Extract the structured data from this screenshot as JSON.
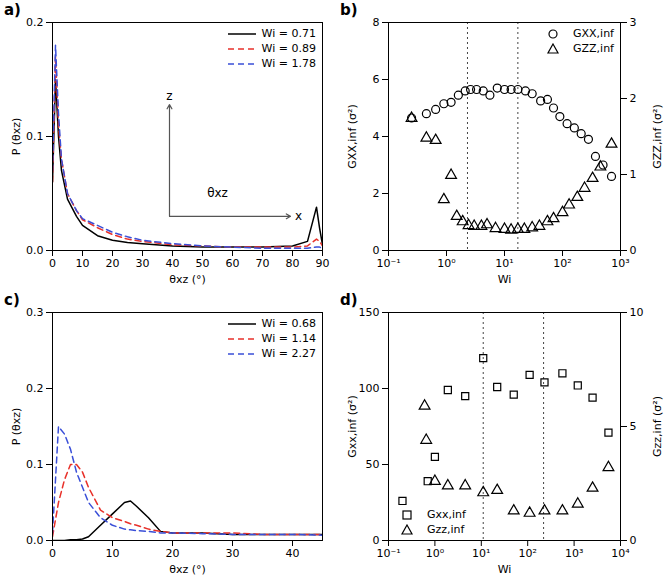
{
  "chart_data": [
    {
      "type": "line",
      "title": "a)",
      "x_label": "θxz (°)",
      "y_label": "P (θxz)",
      "x": [
        0,
        1,
        2,
        3,
        5,
        8,
        10,
        15,
        20,
        25,
        30,
        40,
        50,
        60,
        70,
        80,
        85,
        88,
        89,
        90
      ],
      "series": [
        {
          "name": "Wi = 0.71",
          "color": "#000000",
          "line_style": "solid",
          "values": [
            0.06,
            0.15,
            0.1,
            0.07,
            0.045,
            0.03,
            0.022,
            0.013,
            0.009,
            0.007,
            0.006,
            0.004,
            0.003,
            0.003,
            0.003,
            0.004,
            0.008,
            0.038,
            0.02,
            0.005
          ]
        },
        {
          "name": "Wi = 0.89",
          "color": "#e8312a",
          "line_style": "dashed",
          "values": [
            0.06,
            0.17,
            0.11,
            0.08,
            0.05,
            0.035,
            0.027,
            0.02,
            0.014,
            0.01,
            0.008,
            0.005,
            0.004,
            0.003,
            0.003,
            0.003,
            0.004,
            0.01,
            0.008,
            0.004
          ]
        },
        {
          "name": "Wi = 1.78",
          "color": "#3a4fd8",
          "line_style": "dashed",
          "values": [
            0.07,
            0.18,
            0.12,
            0.08,
            0.05,
            0.035,
            0.028,
            0.022,
            0.016,
            0.012,
            0.009,
            0.006,
            0.004,
            0.003,
            0.002,
            0.002,
            0.002,
            0.003,
            0.003,
            0.002
          ]
        }
      ],
      "annotations": [
        {
          "text": "z",
          "x": 39,
          "y": 0.135
        },
        {
          "text": "x",
          "x": 82,
          "y": 0.03
        },
        {
          "text": "θxz",
          "x": 55,
          "y": 0.05
        }
      ],
      "xlim": [
        0,
        90
      ],
      "xticks": [
        0,
        10,
        20,
        30,
        40,
        50,
        60,
        70,
        80,
        90
      ],
      "ylim": [
        0,
        0.2
      ],
      "yticks": [
        {
          "value": 0,
          "label": "0.0"
        },
        {
          "value": 0.1,
          "label": "0.1"
        },
        {
          "value": 0.2,
          "label": "0.2"
        }
      ],
      "legend": "upper right"
    },
    {
      "type": "scatter",
      "title": "b)",
      "x_label": "Wi",
      "y_label": "GXX,inf (σ²)",
      "y2_label": "GZZ,inf (σ²)",
      "log": "x",
      "series": [
        {
          "name": "GXX,inf",
          "color": "#000000",
          "marker": "circle",
          "x": [
            0.25,
            0.45,
            0.65,
            0.9,
            1.2,
            1.6,
            2.1,
            2.6,
            3.3,
            4.3,
            5.6,
            7.5,
            10,
            13,
            17,
            23,
            30,
            42,
            55,
            70,
            90,
            120,
            160,
            210,
            280,
            370,
            500,
            700
          ],
          "values": [
            4.65,
            4.8,
            4.95,
            5.15,
            5.2,
            5.45,
            5.6,
            5.65,
            5.65,
            5.6,
            5.45,
            5.7,
            5.65,
            5.65,
            5.65,
            5.6,
            5.5,
            5.25,
            5.3,
            5.0,
            4.7,
            4.45,
            4.3,
            4.1,
            3.9,
            3.3,
            3.0,
            2.6
          ]
        },
        {
          "name": "GZZ,inf",
          "color": "#000000",
          "marker": "triangle",
          "axis": "y2",
          "x": [
            0.25,
            0.45,
            0.65,
            0.9,
            1.2,
            1.5,
            1.9,
            2.4,
            3,
            4,
            5,
            7,
            10,
            13,
            17,
            22,
            30,
            40,
            55,
            70,
            100,
            130,
            180,
            240,
            330,
            450,
            700
          ],
          "values": [
            1.74,
            1.48,
            1.45,
            0.67,
            0.99,
            0.45,
            0.38,
            0.33,
            0.32,
            0.32,
            0.34,
            0.29,
            0.28,
            0.27,
            0.28,
            0.28,
            0.3,
            0.32,
            0.38,
            0.42,
            0.5,
            0.6,
            0.7,
            0.82,
            0.95,
            1.1,
            1.4
          ]
        }
      ],
      "vlines": [
        2.3,
        17
      ],
      "xlim": [
        0.1,
        1000
      ],
      "xticks": [
        {
          "value": 0.1,
          "label": "10⁻¹"
        },
        {
          "value": 1,
          "label": "10⁰"
        },
        {
          "value": 10,
          "label": "10¹"
        },
        {
          "value": 100,
          "label": "10²"
        },
        {
          "value": 1000,
          "label": "10³"
        }
      ],
      "ylim": [
        0,
        8
      ],
      "yticks": [
        0,
        2,
        4,
        6,
        8
      ],
      "y2lim": [
        0,
        3
      ],
      "y2ticks": [
        0,
        1,
        2,
        3
      ],
      "legend": "upper right"
    },
    {
      "type": "line",
      "title": "c)",
      "x_label": "θxz (°)",
      "y_label": "P (θxz)",
      "x": [
        0,
        1,
        2,
        3,
        4,
        5,
        6,
        8,
        10,
        12,
        13,
        14,
        16,
        18,
        20,
        25,
        30,
        35,
        40,
        45
      ],
      "series": [
        {
          "name": "Wi = 0.68",
          "color": "#000000",
          "line_style": "solid",
          "values": [
            0,
            0,
            0,
            0.001,
            0.001,
            0.002,
            0.005,
            0.02,
            0.035,
            0.05,
            0.052,
            0.045,
            0.03,
            0.012,
            0.01,
            0.01,
            0.008,
            0.008,
            0.008,
            0.008
          ]
        },
        {
          "name": "Wi = 1.14",
          "color": "#e8312a",
          "line_style": "dashed",
          "values": [
            0.005,
            0.05,
            0.08,
            0.1,
            0.1,
            0.09,
            0.07,
            0.04,
            0.03,
            0.025,
            0.022,
            0.02,
            0.015,
            0.012,
            0.01,
            0.01,
            0.01,
            0.008,
            0.008,
            0.008
          ]
        },
        {
          "name": "Wi = 2.27",
          "color": "#3a4fd8",
          "line_style": "dashed",
          "values": [
            0.01,
            0.15,
            0.14,
            0.12,
            0.09,
            0.07,
            0.05,
            0.03,
            0.02,
            0.015,
            0.014,
            0.013,
            0.012,
            0.01,
            0.01,
            0.009,
            0.008,
            0.008,
            0.008,
            0.007
          ]
        }
      ],
      "xlim": [
        0,
        45
      ],
      "xticks": [
        0,
        10,
        20,
        30,
        40
      ],
      "ylim": [
        0,
        0.3
      ],
      "yticks": [
        {
          "value": 0,
          "label": "0.0"
        },
        {
          "value": 0.1,
          "label": "0.1"
        },
        {
          "value": 0.2,
          "label": "0.2"
        },
        {
          "value": 0.3,
          "label": "0.3"
        }
      ],
      "legend": "upper right"
    },
    {
      "type": "scatter",
      "title": "d)",
      "x_label": "Wi",
      "y_label": "Gxx,inf (σ²)",
      "y2_label": "Gzz,inf (σ²)",
      "log": "x",
      "series": [
        {
          "name": "Gxx,inf",
          "color": "#000000",
          "marker": "square",
          "x": [
            0.2,
            0.7,
            1.0,
            1.9,
            4.5,
            11,
            22,
            50,
            110,
            230,
            560,
            1200,
            2500,
            5500
          ],
          "values": [
            26,
            39,
            55,
            99,
            95,
            120,
            101,
            96,
            109,
            104,
            110,
            102,
            94,
            71
          ]
        },
        {
          "name": "Gzz,inf",
          "color": "#000000",
          "marker": "triangle",
          "axis": "y2",
          "x": [
            0.6,
            0.65,
            1.0,
            1.9,
            4.5,
            11,
            22,
            50,
            110,
            230,
            560,
            1200,
            2500,
            5500
          ],
          "values": [
            5.9,
            4.4,
            2.6,
            2.4,
            2.4,
            2.1,
            2.2,
            1.3,
            1.2,
            1.3,
            1.3,
            1.6,
            2.3,
            3.2
          ]
        }
      ],
      "vlines": [
        11,
        220
      ],
      "xlim": [
        0.1,
        10000
      ],
      "xticks": [
        {
          "value": 0.1,
          "label": "10⁻¹"
        },
        {
          "value": 1,
          "label": "10⁰"
        },
        {
          "value": 10,
          "label": "10¹"
        },
        {
          "value": 100,
          "label": "10²"
        },
        {
          "value": 1000,
          "label": "10³"
        },
        {
          "value": 10000,
          "label": "10⁴"
        }
      ],
      "ylim": [
        0,
        150
      ],
      "yticks": [
        0,
        50,
        100,
        150
      ],
      "y2lim": [
        0,
        10
      ],
      "y2ticks": [
        0,
        5,
        10
      ],
      "legend": "lower left"
    }
  ]
}
